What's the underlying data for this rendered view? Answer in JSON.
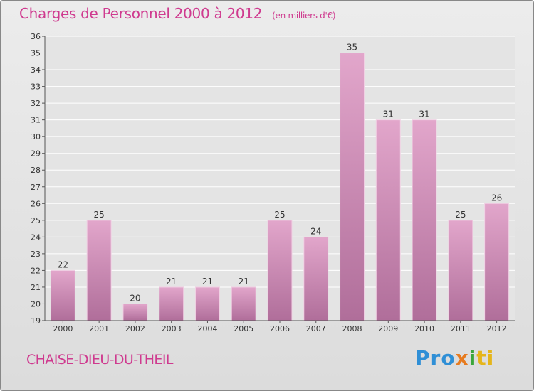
{
  "header": {
    "title": "Charges de Personnel 2000 à 2012",
    "subtitle": "(en milliers d'€)"
  },
  "footer": {
    "commune": "CHAISE-DIEU-DU-THEIL",
    "logo": [
      "Pro",
      "x",
      "i",
      "ti"
    ]
  },
  "colors": {
    "title": "#cf3a8f",
    "bar_top": "#e2a6cb",
    "bar_bottom": "#b06e9a",
    "grid": "#ffffff"
  },
  "chart_data": {
    "type": "bar",
    "title": "Charges de Personnel 2000 à 2012",
    "subtitle": "(en milliers d'€)",
    "xlabel": "",
    "ylabel": "",
    "categories": [
      "2000",
      "2001",
      "2002",
      "2003",
      "2004",
      "2005",
      "2006",
      "2007",
      "2008",
      "2009",
      "2010",
      "2011",
      "2012"
    ],
    "values": [
      22,
      25,
      20,
      21,
      21,
      21,
      25,
      24,
      35,
      31,
      31,
      25,
      26
    ],
    "ylim": [
      19,
      36
    ],
    "yticks": [
      19,
      20,
      21,
      22,
      23,
      24,
      25,
      26,
      27,
      28,
      29,
      30,
      31,
      32,
      33,
      34,
      35,
      36
    ],
    "grid": true
  }
}
